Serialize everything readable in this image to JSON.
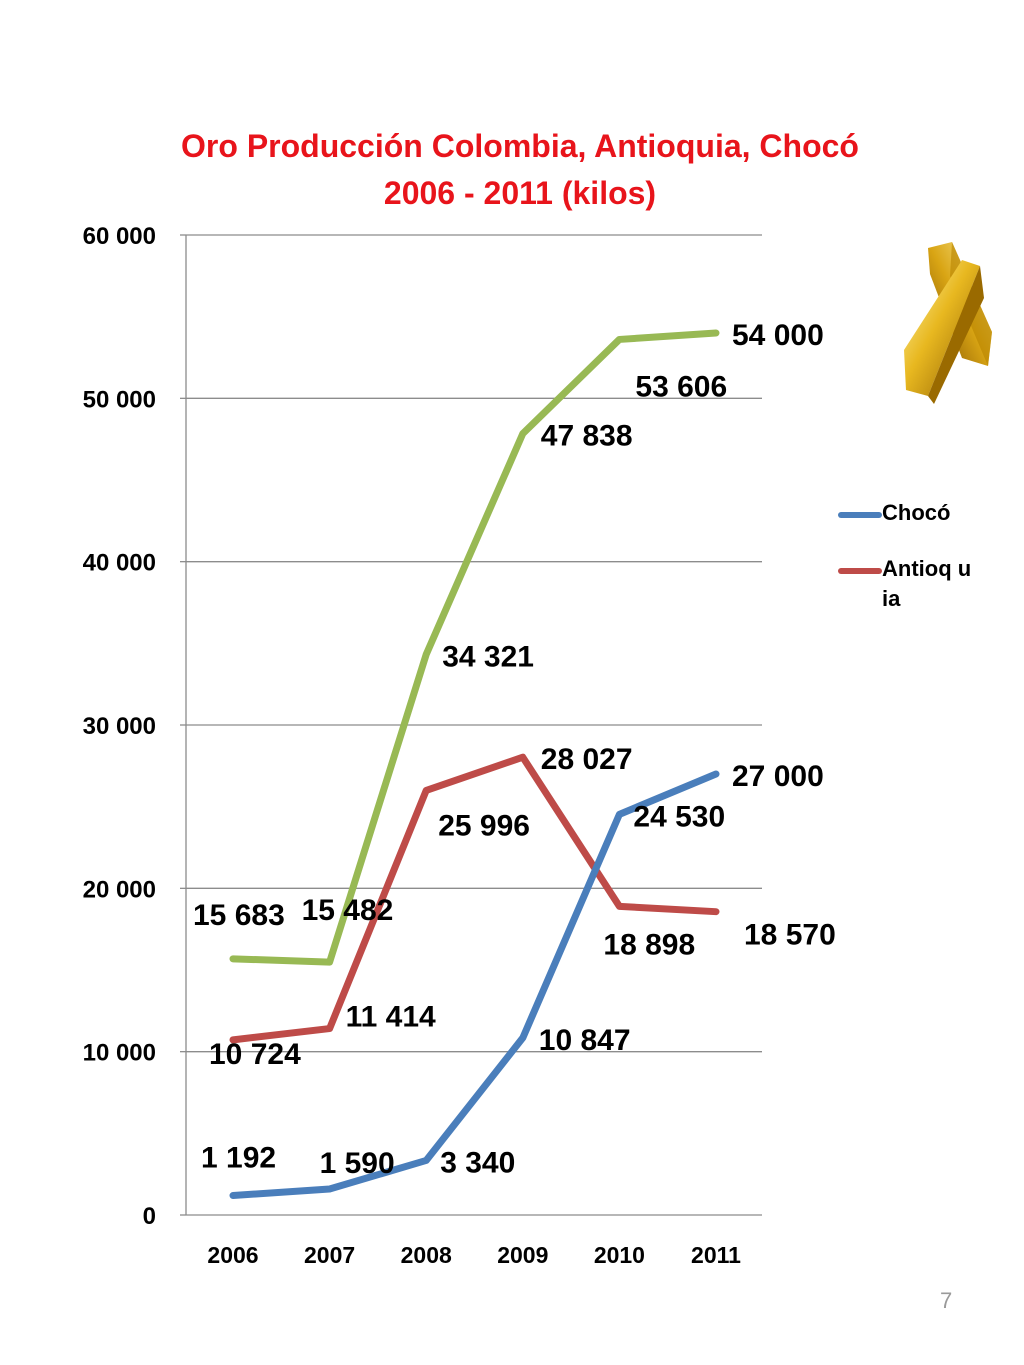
{
  "slide": {
    "title_line1": "Oro Producción Colombia, Antioquia, Chocó",
    "title_line2": "2006 - 2011 (kilos)",
    "page_number": "7"
  },
  "icon": {
    "name": "gold-bars-icon",
    "color": "#d4a017"
  },
  "chart_data": {
    "type": "line",
    "title": "Oro Producción Colombia, Antioquia, Chocó 2006 - 2011 (kilos)",
    "x": [
      "2006",
      "2007",
      "2008",
      "2009",
      "2010",
      "2011"
    ],
    "ylim": [
      0,
      60000
    ],
    "yticks": [
      0,
      10000,
      20000,
      30000,
      40000,
      50000,
      60000
    ],
    "ytick_labels": [
      "0",
      "10 000",
      "20 000",
      "30 000",
      "40 000",
      "50 000",
      "60 000"
    ],
    "grid": true,
    "legend_position": "right",
    "series": [
      {
        "name": "Chocó",
        "color": "#4a7ebb",
        "values": [
          1192,
          1590,
          3340,
          10847,
          24530,
          27000
        ],
        "labels": [
          "1 192",
          "1 590",
          "3 340",
          "10 847",
          "24 530",
          "27 000"
        ]
      },
      {
        "name": "Antioquia",
        "legend_label": "Antioq uia",
        "color": "#be4b48",
        "values": [
          10724,
          11414,
          25996,
          28027,
          18898,
          18570
        ],
        "labels": [
          "10 724",
          "11 414",
          "25 996",
          "28 027",
          "18 898",
          "18 570"
        ]
      },
      {
        "color": "#98b954",
        "values": [
          15683,
          15482,
          34321,
          47838,
          53606,
          54000
        ],
        "labels": [
          "15 683",
          "15 482",
          "34 321",
          "47 838",
          "53 606",
          "54 000"
        ]
      }
    ]
  }
}
